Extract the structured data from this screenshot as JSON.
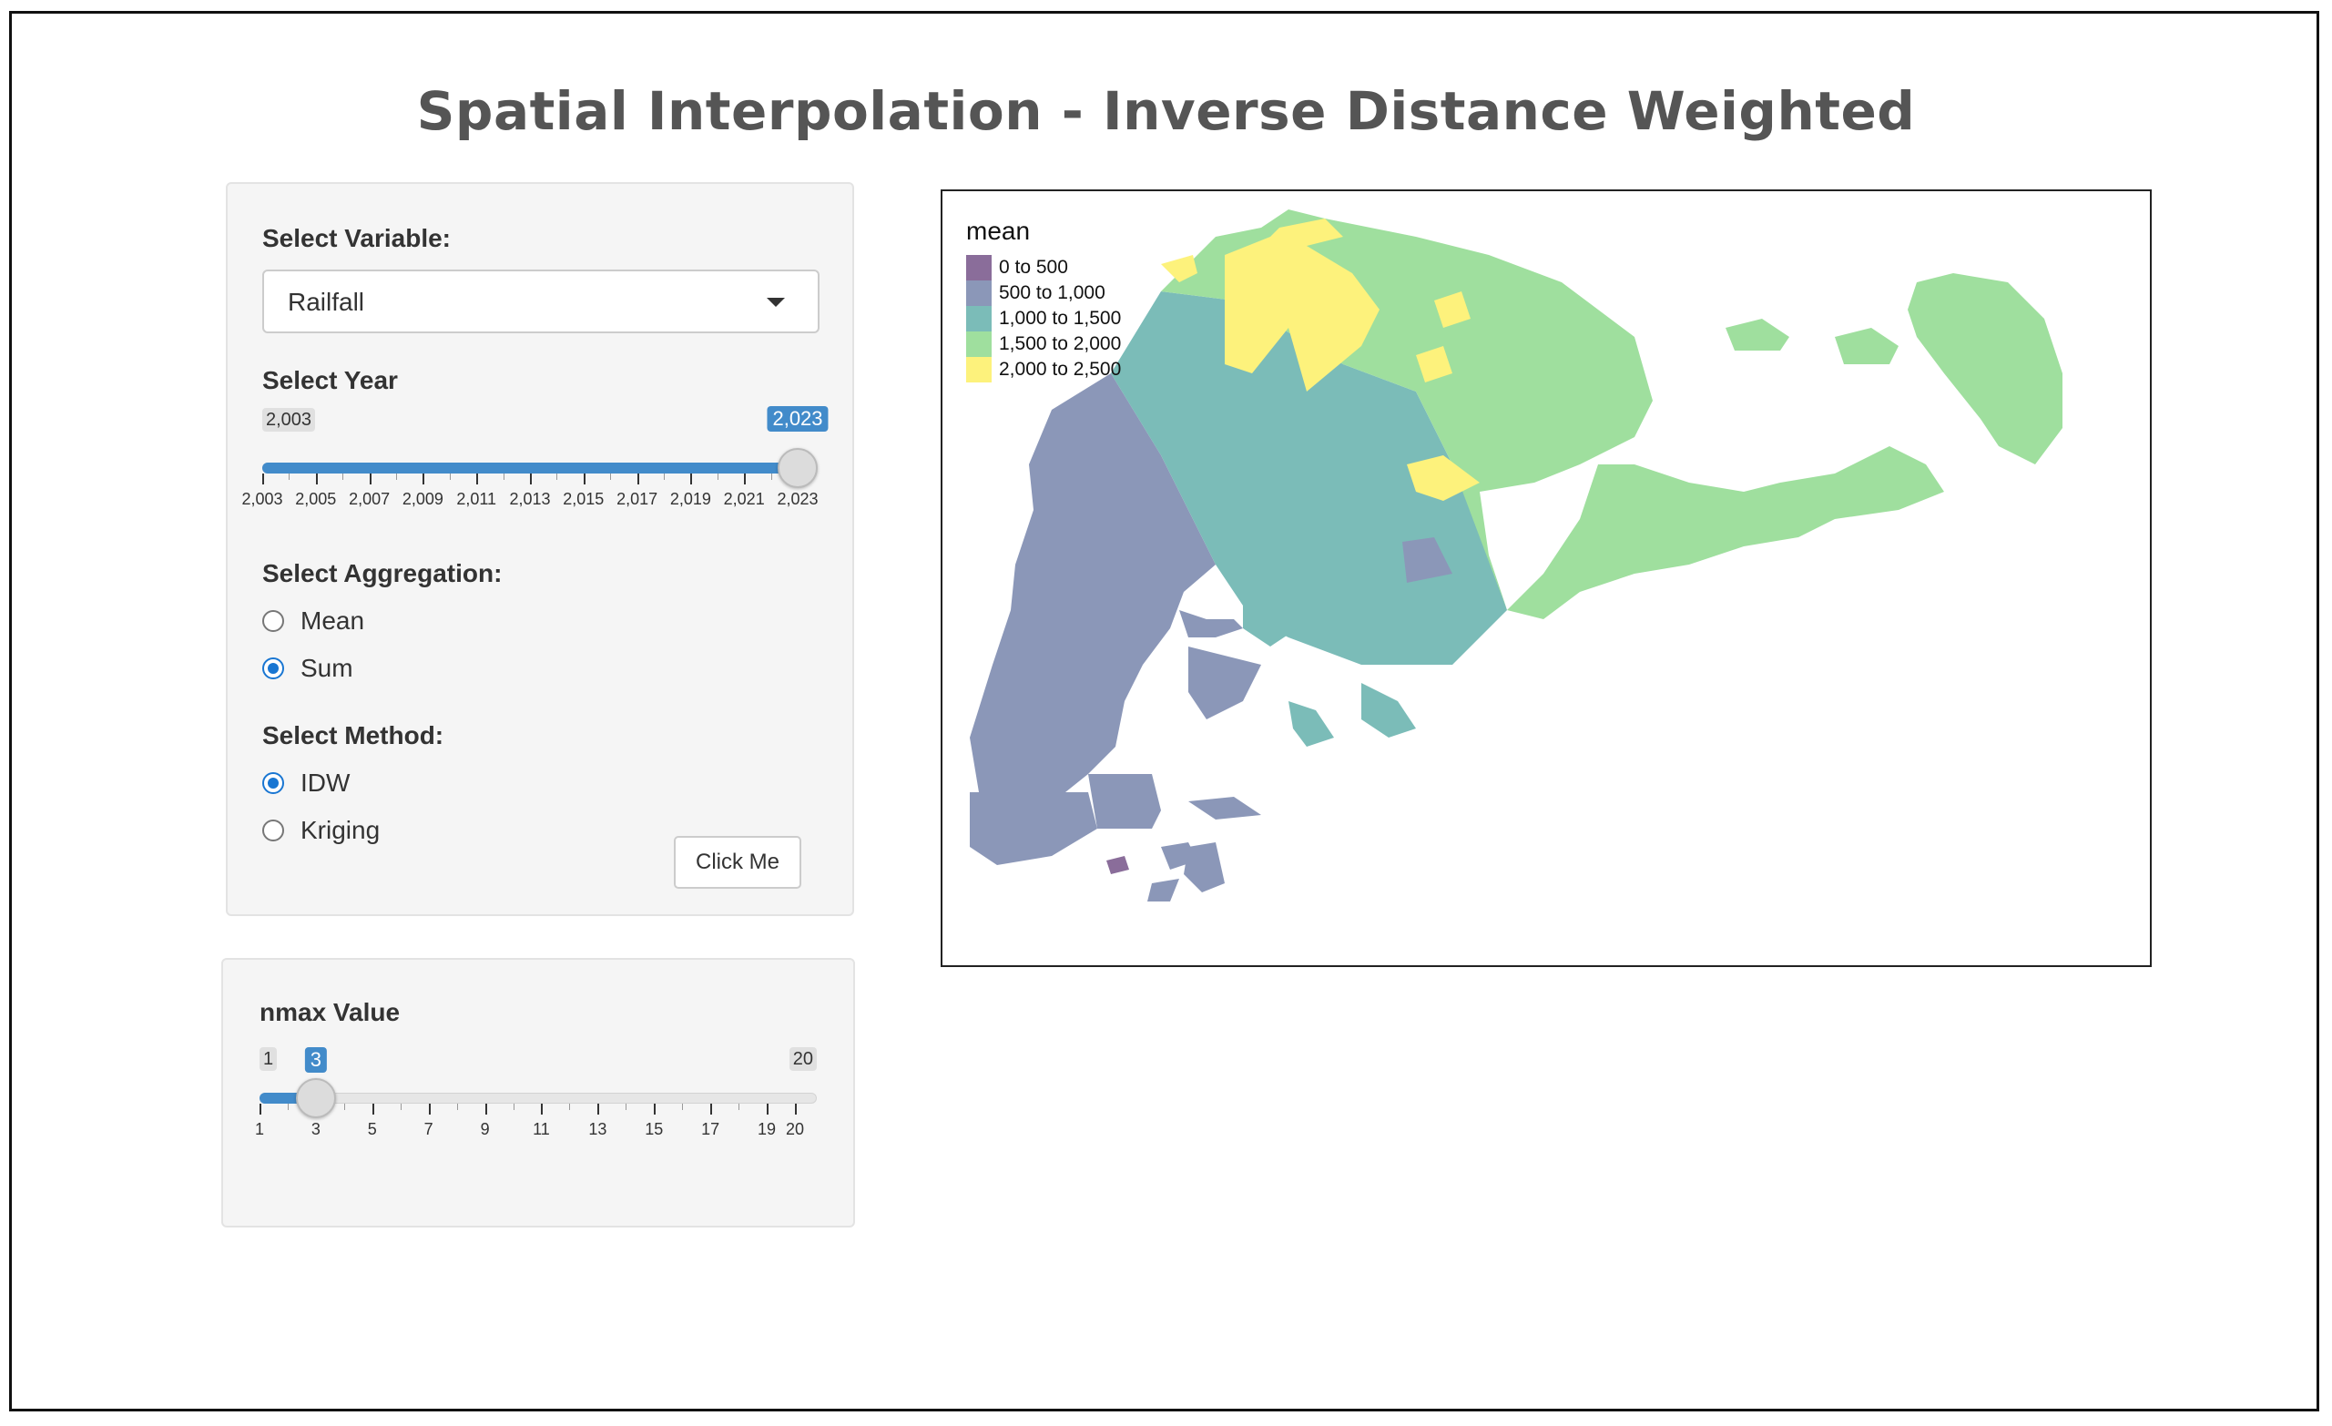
{
  "title": "Spatial Interpolation - Inverse Distance Weighted",
  "controls": {
    "variable_label": "Select Variable:",
    "variable_value": "Railfall",
    "year_label": "Select Year",
    "year_slider": {
      "min_label": "2,003",
      "current_label": "2,023",
      "min": 2003,
      "max": 2023,
      "value": 2023,
      "tick_labels": [
        "2,003",
        "2,005",
        "2,007",
        "2,009",
        "2,011",
        "2,013",
        "2,015",
        "2,017",
        "2,019",
        "2,021",
        "2,023"
      ]
    },
    "aggregation_label": "Select Aggregation:",
    "aggregation_options": [
      {
        "label": "Mean",
        "selected": false
      },
      {
        "label": "Sum",
        "selected": true
      }
    ],
    "method_label": "Select Method:",
    "method_options": [
      {
        "label": "IDW",
        "selected": true
      },
      {
        "label": "Kriging",
        "selected": false
      }
    ],
    "button_label": "Click Me"
  },
  "nmax": {
    "label": "nmax Value",
    "min_label": "1",
    "current_label": "3",
    "max_label": "20",
    "min": 1,
    "max": 20,
    "value": 3,
    "tick_labels": [
      "1",
      "3",
      "5",
      "7",
      "9",
      "11",
      "13",
      "15",
      "17",
      "19",
      "20"
    ]
  },
  "map": {
    "legend_title": "mean",
    "legend": [
      {
        "label": "0 to 500",
        "color": "#8a6d9a"
      },
      {
        "label": "500 to 1,000",
        "color": "#8b97b8"
      },
      {
        "label": "1,000 to 1,500",
        "color": "#7bbcb8"
      },
      {
        "label": "1,500 to 2,000",
        "color": "#9fdf9e"
      },
      {
        "label": "2,000 to 2,500",
        "color": "#fdf27c"
      }
    ]
  },
  "colors": {
    "accent": "#428bca",
    "radio": "#1976d2"
  }
}
